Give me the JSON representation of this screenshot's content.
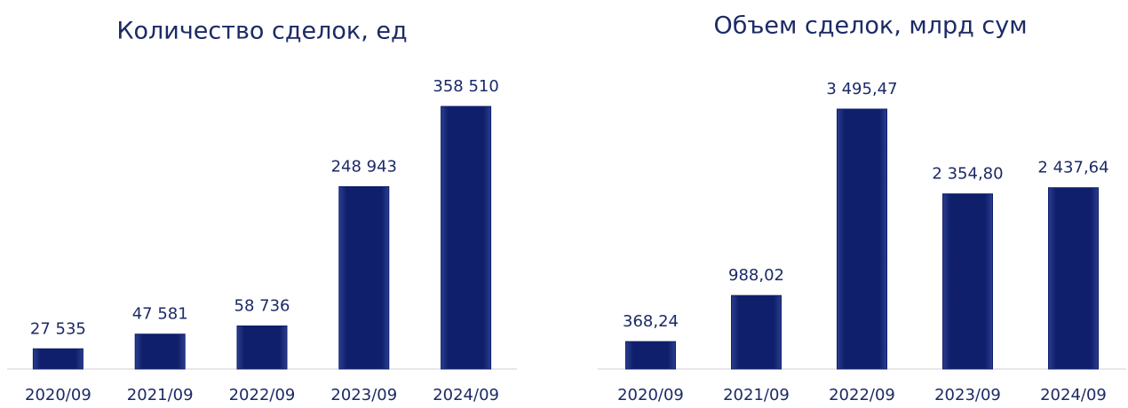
{
  "chart_data": [
    {
      "type": "bar",
      "title": "Количество сделок, ед",
      "categories": [
        "2020/09",
        "2021/09",
        "2022/09",
        "2023/09",
        "2024/09"
      ],
      "values": [
        27535,
        47581,
        58736,
        248943,
        358510
      ],
      "value_labels": [
        "27 535",
        "47 581",
        "58 736",
        "248 943",
        "358 510"
      ],
      "color": "#0f1f6b"
    },
    {
      "type": "bar",
      "title": "Объем сделок, млрд сум",
      "categories": [
        "2020/09",
        "2021/09",
        "2022/09",
        "2023/09",
        "2024/09"
      ],
      "values": [
        368.24,
        988.02,
        3495.47,
        2354.8,
        2437.64
      ],
      "value_labels": [
        "368,24",
        "988,02",
        "3 495,47",
        "2 354,80",
        "2 437,64"
      ],
      "color": "#0f1f6b"
    }
  ]
}
